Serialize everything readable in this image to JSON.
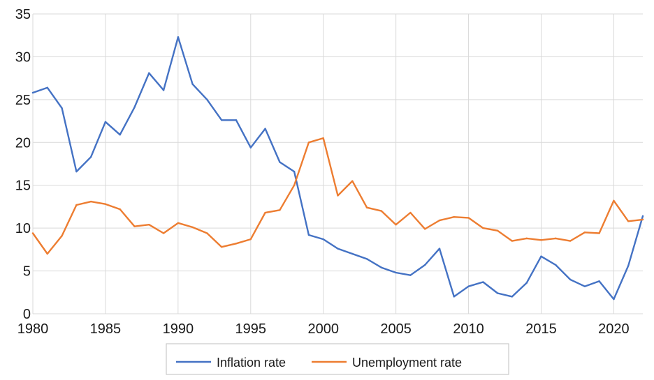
{
  "chart_data": {
    "type": "line",
    "title": "",
    "xlabel": "",
    "ylabel": "",
    "x": [
      1980,
      1981,
      1982,
      1983,
      1984,
      1985,
      1986,
      1987,
      1988,
      1989,
      1990,
      1991,
      1992,
      1993,
      1994,
      1995,
      1996,
      1997,
      1998,
      1999,
      2000,
      2001,
      2002,
      2003,
      2004,
      2005,
      2006,
      2007,
      2008,
      2009,
      2010,
      2011,
      2012,
      2013,
      2014,
      2015,
      2016,
      2017,
      2018,
      2019,
      2020,
      2021,
      2022
    ],
    "xlim": [
      1980,
      2022
    ],
    "ylim": [
      0,
      35
    ],
    "xticks": [
      "1980",
      "1985",
      "1990",
      "1995",
      "2000",
      "2005",
      "2010",
      "2015",
      "2020"
    ],
    "yticks": [
      "0",
      "5",
      "10",
      "15",
      "20",
      "25",
      "30",
      "35"
    ],
    "grid": "vertical and horizontal",
    "legend": "bottom",
    "series": [
      {
        "name": "Inflation rate",
        "color": "#4472C4",
        "values": [
          25.8,
          26.4,
          24.0,
          16.6,
          18.3,
          22.4,
          20.9,
          24.1,
          28.1,
          26.1,
          32.3,
          26.8,
          25.0,
          22.6,
          22.6,
          19.4,
          21.6,
          17.7,
          16.6,
          9.2,
          8.7,
          7.6,
          7.0,
          6.4,
          5.4,
          4.8,
          4.5,
          5.7,
          7.6,
          2.0,
          3.2,
          3.7,
          2.4,
          2.0,
          3.6,
          6.7,
          5.7,
          4.0,
          3.2,
          3.8,
          1.7,
          5.6,
          11.4
        ]
      },
      {
        "name": "Unemployment rate",
        "color": "#ED7D31",
        "values": [
          9.4,
          7.0,
          9.1,
          12.7,
          13.1,
          12.8,
          12.2,
          10.2,
          10.4,
          9.4,
          10.6,
          10.1,
          9.4,
          7.8,
          8.2,
          8.7,
          11.8,
          12.1,
          15.0,
          20.0,
          20.5,
          13.8,
          15.5,
          12.4,
          12.0,
          10.4,
          11.8,
          9.9,
          10.9,
          11.3,
          11.2,
          10.0,
          9.7,
          8.5,
          8.8,
          8.6,
          8.8,
          8.5,
          9.5,
          9.4,
          13.2,
          10.8,
          11.0
        ]
      }
    ]
  }
}
